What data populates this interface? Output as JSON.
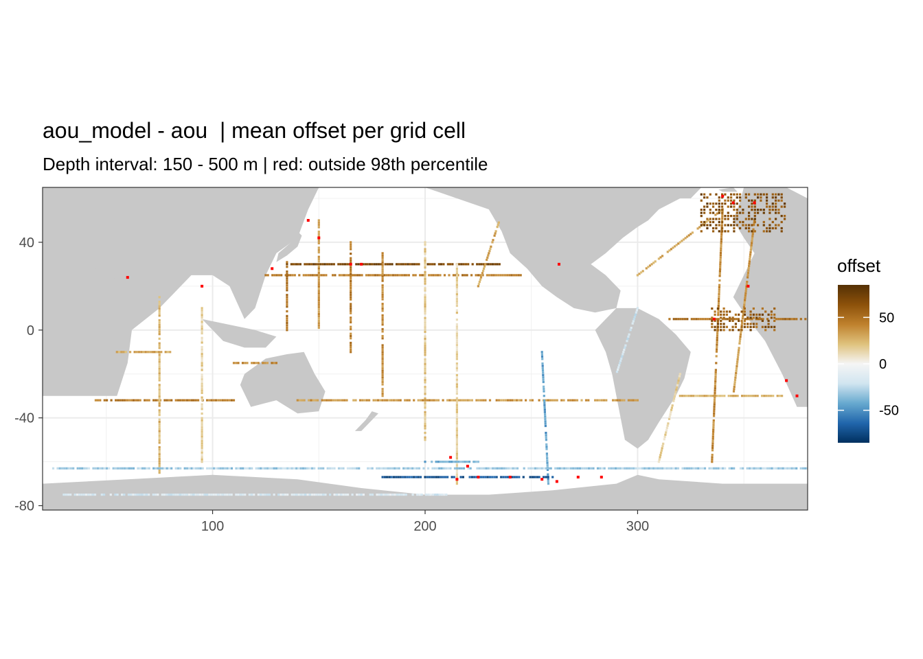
{
  "chart_data": {
    "type": "heatmap",
    "title": "aou_model - aou  | mean offset per grid cell",
    "subtitle": "Depth interval: 150 - 500 m | red: outside 98th percentile",
    "xlabel": "",
    "ylabel": "",
    "xlim": [
      20,
      380
    ],
    "ylim": [
      -82,
      65
    ],
    "x_ticks": [
      100,
      200,
      300
    ],
    "y_ticks": [
      40,
      0,
      -40,
      -80
    ],
    "grid": true,
    "legend": {
      "title": "offset",
      "placement": "right",
      "range": [
        -85,
        85
      ],
      "ticks": [
        50,
        0,
        -50
      ],
      "colors": [
        "#00305f",
        "#2166ac",
        "#67a9cf",
        "#d1e5f0",
        "#f5f5f5",
        "#dfc27d",
        "#bf812d",
        "#8c510a",
        "#543005"
      ]
    },
    "highlight_color": "#ff0000",
    "land_color": "#c8c8c8",
    "ocean_color": "#ffffff",
    "tracks": [
      {
        "lon": [
          135,
          235
        ],
        "lat": [
          30,
          30
        ],
        "value": 70
      },
      {
        "lon": [
          125,
          245
        ],
        "lat": [
          25,
          25
        ],
        "value": 45
      },
      {
        "lon": [
          135,
          135
        ],
        "lat": [
          0,
          32
        ],
        "value": 50
      },
      {
        "lon": [
          165,
          165
        ],
        "lat": [
          -10,
          40
        ],
        "value": 45
      },
      {
        "lon": [
          180,
          180
        ],
        "lat": [
          -30,
          35
        ],
        "value": 40
      },
      {
        "lon": [
          150,
          150
        ],
        "lat": [
          0,
          50
        ],
        "value": 35
      },
      {
        "lon": [
          200,
          200
        ],
        "lat": [
          -50,
          40
        ],
        "value": 20
      },
      {
        "lon": [
          235,
          225
        ],
        "lat": [
          50,
          20
        ],
        "value": 30
      },
      {
        "lon": [
          140,
          300
        ],
        "lat": [
          -32,
          -32
        ],
        "value": 35
      },
      {
        "lon": [
          215,
          215
        ],
        "lat": [
          -70,
          30
        ],
        "value": 15
      },
      {
        "lon": [
          255,
          258
        ],
        "lat": [
          -10,
          -70
        ],
        "value": -45
      },
      {
        "lon": [
          45,
          110
        ],
        "lat": [
          -32,
          -32
        ],
        "value": 45
      },
      {
        "lon": [
          110,
          130
        ],
        "lat": [
          -15,
          -15
        ],
        "value": 40
      },
      {
        "lon": [
          75,
          75
        ],
        "lat": [
          -65,
          15
        ],
        "value": 25
      },
      {
        "lon": [
          95,
          95
        ],
        "lat": [
          -60,
          10
        ],
        "value": 15
      },
      {
        "lon": [
          55,
          80
        ],
        "lat": [
          -10,
          -10
        ],
        "value": 30
      },
      {
        "lon": [
          290,
          300
        ],
        "lat": [
          -20,
          10
        ],
        "value": -20
      },
      {
        "lon": [
          315,
          380
        ],
        "lat": [
          5,
          5
        ],
        "value": 50
      },
      {
        "lon": [
          320,
          370
        ],
        "lat": [
          -30,
          -30
        ],
        "value": 25
      },
      {
        "lon": [
          335,
          340
        ],
        "lat": [
          -60,
          55
        ],
        "value": 40
      },
      {
        "lon": [
          345,
          355
        ],
        "lat": [
          -30,
          50
        ],
        "value": 35
      },
      {
        "lon": [
          310,
          320
        ],
        "lat": [
          -60,
          -20
        ],
        "value": 15
      },
      {
        "lon": [
          300,
          340
        ],
        "lat": [
          25,
          55
        ],
        "value": 30
      },
      {
        "lon": [
          180,
          260
        ],
        "lat": [
          -67,
          -67
        ],
        "value": -70
      },
      {
        "lon": [
          200,
          225
        ],
        "lat": [
          -60,
          -60
        ],
        "value": -40
      },
      {
        "lon": [
          25,
          380
        ],
        "lat": [
          -63,
          -63
        ],
        "value": -30
      },
      {
        "lon": [
          30,
          210
        ],
        "lat": [
          -75,
          -75
        ],
        "value": -15
      }
    ],
    "patches": [
      {
        "lon": [
          330,
          370
        ],
        "lat": [
          45,
          62
        ],
        "value": 65
      },
      {
        "lon": [
          335,
          365
        ],
        "lat": [
          0,
          10
        ],
        "value": 60
      }
    ],
    "outliers": [
      {
        "lon": 165,
        "lat": 30
      },
      {
        "lon": 170,
        "lat": 30
      },
      {
        "lon": 150,
        "lat": 42
      },
      {
        "lon": 145,
        "lat": 50
      },
      {
        "lon": 128,
        "lat": 28
      },
      {
        "lon": 345,
        "lat": 58
      },
      {
        "lon": 340,
        "lat": 61
      },
      {
        "lon": 355,
        "lat": 58
      },
      {
        "lon": 336,
        "lat": 5
      },
      {
        "lon": 352,
        "lat": 20
      },
      {
        "lon": 370,
        "lat": -23
      },
      {
        "lon": 375,
        "lat": -30
      },
      {
        "lon": 215,
        "lat": -68
      },
      {
        "lon": 225,
        "lat": -67
      },
      {
        "lon": 240,
        "lat": -67
      },
      {
        "lon": 255,
        "lat": -68
      },
      {
        "lon": 262,
        "lat": -69
      },
      {
        "lon": 272,
        "lat": -67
      },
      {
        "lon": 283,
        "lat": -67
      },
      {
        "lon": 212,
        "lat": -58
      },
      {
        "lon": 220,
        "lat": -62
      },
      {
        "lon": 263,
        "lat": 30
      },
      {
        "lon": 60,
        "lat": 24
      },
      {
        "lon": 95,
        "lat": 20
      }
    ]
  }
}
